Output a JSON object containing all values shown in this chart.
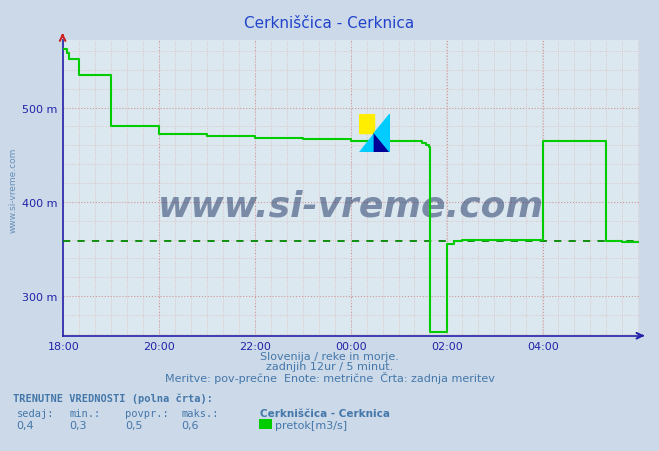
{
  "title": "Cerkniščica - Cerknica",
  "bg_color": "#ccd9e8",
  "plot_bg_color": "#dce8f0",
  "grid_color_major": "#cc9999",
  "grid_color_minor": "#ddbbbb",
  "line_color": "#00cc00",
  "avg_line_color": "#008800",
  "axis_color": "#2222aa",
  "title_color": "#2244cc",
  "text_color": "#4477aa",
  "ytick_labels": [
    "300 m",
    "400 m",
    "500 m"
  ],
  "ytick_vals": [
    300,
    400,
    500
  ],
  "ylim": [
    258,
    572
  ],
  "xtick_labels": [
    "18:00",
    "20:00",
    "22:00",
    "00:00",
    "02:00",
    "04:00"
  ],
  "xtick_positions": [
    1,
    121,
    241,
    361,
    481,
    601
  ],
  "xmin": 0,
  "xmax": 721,
  "avg_y": 358,
  "subtitle1": "Slovenija / reke in morje.",
  "subtitle2": "zadnjih 12ur / 5 minut.",
  "subtitle3": "Meritve: pov­prečne  Enote: metrične  Črta: zadnja meritev",
  "footer_bold": "TRENUTNE VREDNOSTI (polna črta):",
  "footer_labels": [
    "sedaj:",
    "min.:",
    "povpr.:",
    "maks.:"
  ],
  "footer_values": [
    "0,4",
    "0,3",
    "0,5",
    "0,6"
  ],
  "footer_station": "Cerkniščica - Cerknica",
  "footer_legend": "pretok[m3/s]",
  "watermark": "www.si-vreme.com",
  "watermark_color": "#1a3060",
  "step_x": [
    0,
    5,
    8,
    20,
    60,
    120,
    180,
    240,
    300,
    360,
    361,
    370,
    380,
    390,
    400,
    410,
    420,
    430,
    440,
    450,
    455,
    458,
    460,
    461,
    462,
    480,
    481,
    490,
    500,
    540,
    600,
    601,
    605,
    610,
    621,
    660,
    680,
    700,
    710,
    720
  ],
  "step_y": [
    562,
    558,
    552,
    535,
    480,
    472,
    470,
    468,
    467,
    466,
    465,
    465,
    465,
    465,
    465,
    465,
    465,
    465,
    465,
    462,
    460,
    458,
    262,
    262,
    262,
    262,
    355,
    358,
    360,
    360,
    360,
    465,
    465,
    465,
    465,
    465,
    358,
    357,
    357,
    357
  ]
}
